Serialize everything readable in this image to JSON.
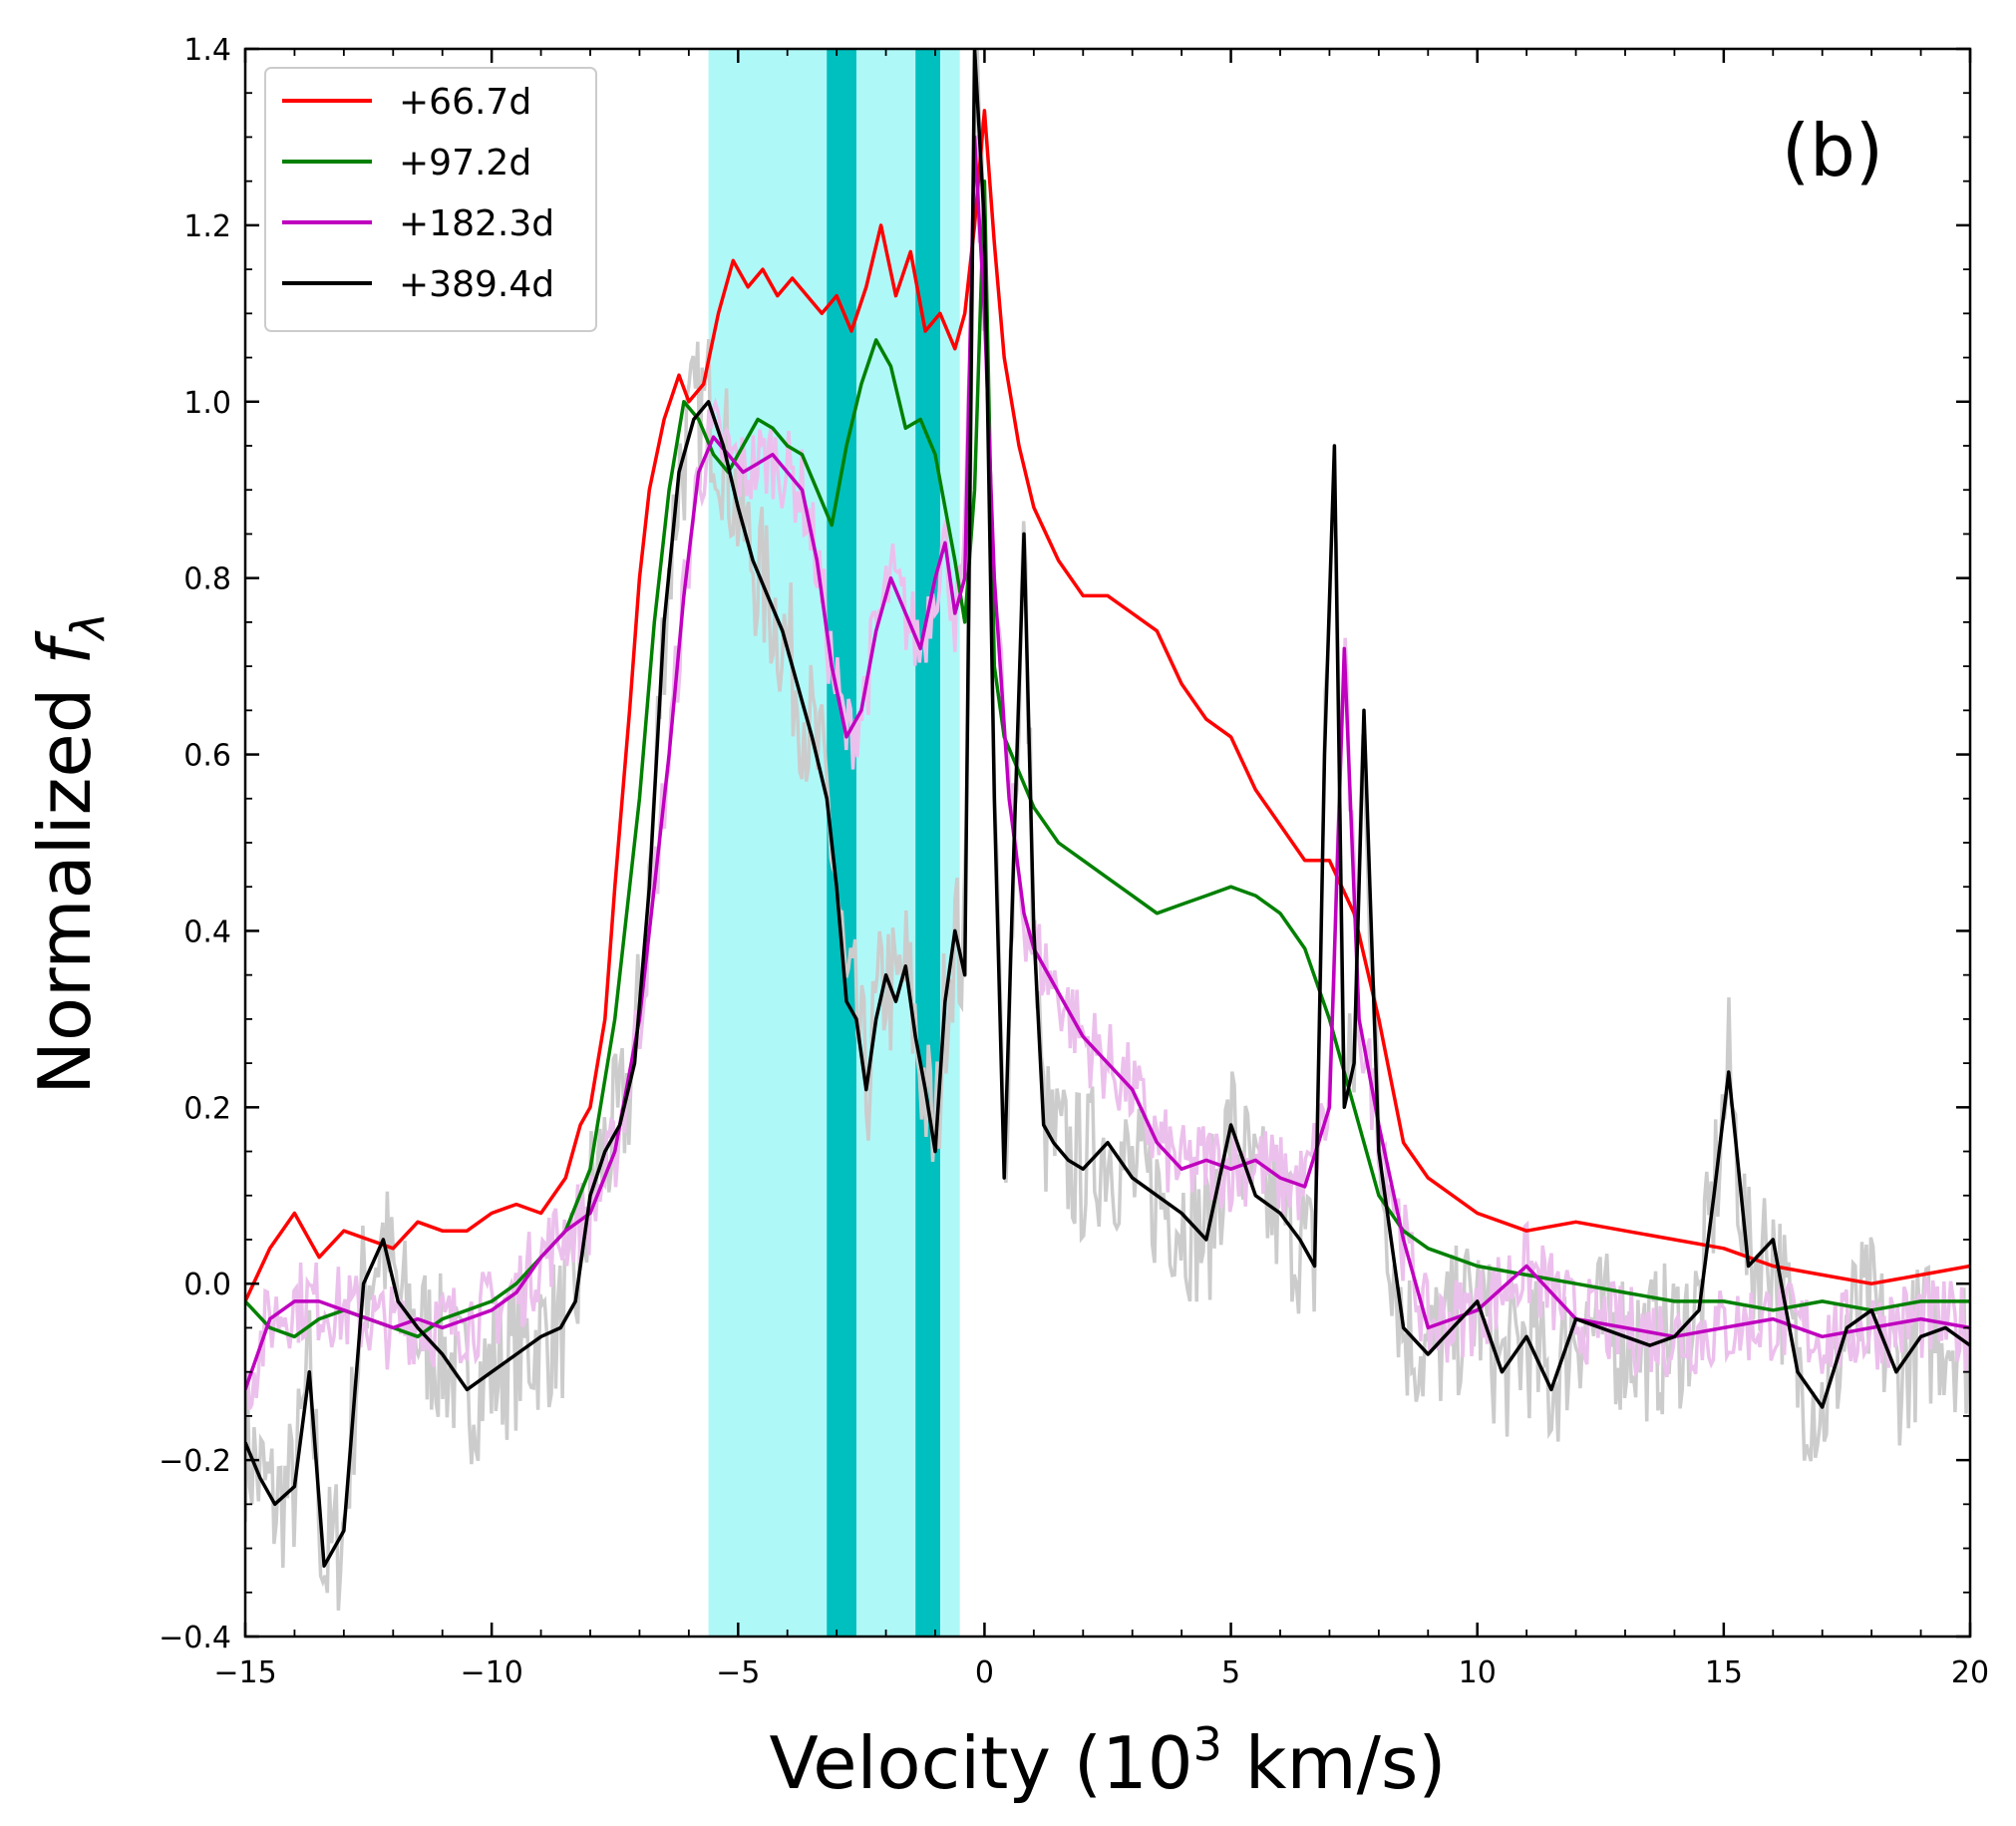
{
  "chart_data": {
    "type": "line",
    "panel_label": "(b)",
    "xlabel": {
      "prefix": "Velocity (10",
      "sup": "3",
      "suffix": " km/s)"
    },
    "ylabel": {
      "prefix": "Normalized ",
      "italic": "f",
      "sub": "λ"
    },
    "xlim": [
      -15,
      20
    ],
    "ylim": [
      -0.4,
      1.4
    ],
    "xticks": [
      -15,
      -10,
      -5,
      0,
      5,
      10,
      15,
      20
    ],
    "xtick_labels": [
      "−15",
      "−10",
      "−5",
      "0",
      "5",
      "10",
      "15",
      "20"
    ],
    "yticks": [
      -0.4,
      -0.2,
      0.0,
      0.2,
      0.4,
      0.6,
      0.8,
      1.0,
      1.2,
      1.4
    ],
    "ytick_labels": [
      "−0.4",
      "−0.2",
      "0.0",
      "0.2",
      "0.4",
      "0.6",
      "0.8",
      "1.0",
      "1.2",
      "1.4"
    ],
    "legend_position": "top-left",
    "shaded_regions": [
      {
        "x0": -5.6,
        "x1": -0.5,
        "color": "#aff8f8",
        "name": "light-band"
      },
      {
        "x0": -3.2,
        "x1": -2.6,
        "color": "#00bfbf",
        "name": "dark-band-1"
      },
      {
        "x0": -1.4,
        "x1": -0.9,
        "color": "#00bfbf",
        "name": "dark-band-2"
      }
    ],
    "series": [
      {
        "name": "+66.7d",
        "color": "#ff0000",
        "x": [
          -15,
          -14.5,
          -14,
          -13.5,
          -13,
          -12.5,
          -12,
          -11.5,
          -11,
          -10.5,
          -10,
          -9.5,
          -9,
          -8.5,
          -8.2,
          -8,
          -7.7,
          -7.5,
          -7.2,
          -7,
          -6.8,
          -6.5,
          -6.2,
          -6,
          -5.7,
          -5.4,
          -5.1,
          -4.8,
          -4.5,
          -4.2,
          -3.9,
          -3.6,
          -3.3,
          -3,
          -2.7,
          -2.4,
          -2.1,
          -1.8,
          -1.5,
          -1.2,
          -0.9,
          -0.6,
          -0.4,
          -0.2,
          0,
          0.2,
          0.4,
          0.7,
          1,
          1.5,
          2,
          2.5,
          3,
          3.5,
          4,
          4.5,
          5,
          5.5,
          6,
          6.5,
          7,
          7.5,
          8,
          8.5,
          9,
          10,
          11,
          12,
          13,
          14,
          15,
          16,
          17,
          18,
          19,
          20
        ],
        "y": [
          -0.02,
          0.04,
          0.08,
          0.03,
          0.06,
          0.05,
          0.04,
          0.07,
          0.06,
          0.06,
          0.08,
          0.09,
          0.08,
          0.12,
          0.18,
          0.2,
          0.3,
          0.45,
          0.65,
          0.8,
          0.9,
          0.98,
          1.03,
          1.0,
          1.02,
          1.1,
          1.16,
          1.13,
          1.15,
          1.12,
          1.14,
          1.12,
          1.1,
          1.12,
          1.08,
          1.13,
          1.2,
          1.12,
          1.17,
          1.08,
          1.1,
          1.06,
          1.1,
          1.2,
          1.33,
          1.18,
          1.05,
          0.95,
          0.88,
          0.82,
          0.78,
          0.78,
          0.76,
          0.74,
          0.68,
          0.64,
          0.62,
          0.56,
          0.52,
          0.48,
          0.48,
          0.42,
          0.3,
          0.16,
          0.12,
          0.08,
          0.06,
          0.07,
          0.06,
          0.05,
          0.04,
          0.02,
          0.01,
          0.0,
          0.01,
          0.02
        ]
      },
      {
        "name": "+97.2d",
        "color": "#008000",
        "x": [
          -15,
          -14.5,
          -14,
          -13.5,
          -13,
          -12.5,
          -12,
          -11.5,
          -11,
          -10.5,
          -10,
          -9.5,
          -9,
          -8.5,
          -8,
          -7.5,
          -7,
          -6.7,
          -6.4,
          -6.1,
          -5.8,
          -5.5,
          -5.2,
          -4.9,
          -4.6,
          -4.3,
          -4,
          -3.7,
          -3.4,
          -3.1,
          -2.8,
          -2.5,
          -2.2,
          -1.9,
          -1.6,
          -1.3,
          -1,
          -0.8,
          -0.6,
          -0.4,
          -0.2,
          0,
          0.2,
          0.4,
          0.7,
          1,
          1.5,
          2,
          2.5,
          3,
          3.5,
          4,
          4.5,
          5,
          5.5,
          6,
          6.5,
          7,
          7.5,
          8,
          8.5,
          9,
          10,
          11,
          12,
          13,
          14,
          15,
          16,
          17,
          18,
          19,
          20
        ],
        "y": [
          -0.02,
          -0.05,
          -0.06,
          -0.04,
          -0.03,
          -0.04,
          -0.05,
          -0.06,
          -0.04,
          -0.03,
          -0.02,
          0.0,
          0.03,
          0.06,
          0.13,
          0.3,
          0.55,
          0.75,
          0.9,
          1.0,
          0.98,
          0.94,
          0.92,
          0.95,
          0.98,
          0.97,
          0.95,
          0.94,
          0.9,
          0.86,
          0.95,
          1.02,
          1.07,
          1.04,
          0.97,
          0.98,
          0.94,
          0.88,
          0.82,
          0.75,
          0.9,
          1.25,
          0.7,
          0.62,
          0.58,
          0.54,
          0.5,
          0.48,
          0.46,
          0.44,
          0.42,
          0.43,
          0.44,
          0.45,
          0.44,
          0.42,
          0.38,
          0.3,
          0.2,
          0.1,
          0.06,
          0.04,
          0.02,
          0.01,
          0.0,
          -0.01,
          -0.02,
          -0.02,
          -0.03,
          -0.02,
          -0.03,
          -0.02,
          -0.02
        ]
      },
      {
        "name": "+182.3d",
        "color": "#bf00bf",
        "x": [
          -15,
          -14.5,
          -14,
          -13.5,
          -13,
          -12.5,
          -12,
          -11.5,
          -11,
          -10.5,
          -10,
          -9.5,
          -9,
          -8.5,
          -8,
          -7.5,
          -7,
          -6.7,
          -6.4,
          -6.1,
          -5.8,
          -5.5,
          -5.2,
          -4.9,
          -4.6,
          -4.3,
          -4,
          -3.7,
          -3.4,
          -3.1,
          -2.8,
          -2.5,
          -2.2,
          -1.9,
          -1.6,
          -1.3,
          -1.0,
          -0.8,
          -0.6,
          -0.4,
          -0.2,
          0,
          0.2,
          0.5,
          0.8,
          1.0,
          1.5,
          2,
          2.5,
          3,
          3.5,
          4,
          4.5,
          5,
          5.5,
          6,
          6.5,
          7,
          7.3,
          7.6,
          8,
          8.5,
          9,
          10,
          11,
          12,
          13,
          14,
          15,
          16,
          17,
          18,
          19,
          20
        ],
        "y": [
          -0.12,
          -0.04,
          -0.02,
          -0.02,
          -0.03,
          -0.04,
          -0.05,
          -0.04,
          -0.05,
          -0.04,
          -0.03,
          -0.01,
          0.03,
          0.06,
          0.08,
          0.15,
          0.3,
          0.45,
          0.6,
          0.78,
          0.92,
          0.96,
          0.94,
          0.92,
          0.93,
          0.94,
          0.92,
          0.9,
          0.82,
          0.7,
          0.62,
          0.65,
          0.74,
          0.8,
          0.76,
          0.72,
          0.8,
          0.84,
          0.76,
          0.8,
          1.3,
          1.1,
          0.8,
          0.55,
          0.42,
          0.38,
          0.33,
          0.28,
          0.25,
          0.22,
          0.16,
          0.13,
          0.14,
          0.13,
          0.14,
          0.12,
          0.11,
          0.2,
          0.72,
          0.3,
          0.18,
          0.05,
          -0.05,
          -0.03,
          0.02,
          -0.04,
          -0.05,
          -0.06,
          -0.05,
          -0.04,
          -0.06,
          -0.05,
          -0.04,
          -0.05
        ]
      },
      {
        "name": "+389.4d",
        "color": "#000000",
        "x": [
          -15,
          -14.7,
          -14.4,
          -14,
          -13.7,
          -13.4,
          -13,
          -12.6,
          -12.2,
          -11.9,
          -11.5,
          -11,
          -10.5,
          -10,
          -9.5,
          -9,
          -8.6,
          -8.3,
          -8,
          -7.7,
          -7.4,
          -7.1,
          -6.8,
          -6.5,
          -6.2,
          -5.9,
          -5.6,
          -5.3,
          -5.0,
          -4.7,
          -4.4,
          -4.1,
          -3.8,
          -3.5,
          -3.2,
          -3.0,
          -2.8,
          -2.6,
          -2.4,
          -2.2,
          -2.0,
          -1.8,
          -1.6,
          -1.4,
          -1.2,
          -1.0,
          -0.8,
          -0.6,
          -0.4,
          -0.2,
          0,
          0.2,
          0.4,
          0.6,
          0.8,
          1.0,
          1.2,
          1.4,
          1.7,
          2,
          2.5,
          3,
          3.5,
          4,
          4.5,
          5,
          5.5,
          6,
          6.4,
          6.7,
          6.9,
          7.1,
          7.3,
          7.5,
          7.7,
          8,
          8.5,
          9,
          9.5,
          10,
          10.5,
          11,
          11.5,
          12,
          12.5,
          13,
          13.5,
          14,
          14.5,
          14.8,
          15.1,
          15.5,
          16,
          16.5,
          17,
          17.5,
          18,
          18.5,
          19,
          19.5,
          20
        ],
        "y": [
          -0.18,
          -0.22,
          -0.25,
          -0.23,
          -0.1,
          -0.32,
          -0.28,
          0.0,
          0.05,
          -0.02,
          -0.05,
          -0.08,
          -0.12,
          -0.1,
          -0.08,
          -0.06,
          -0.05,
          -0.02,
          0.1,
          0.15,
          0.18,
          0.25,
          0.45,
          0.75,
          0.92,
          0.98,
          1.0,
          0.95,
          0.88,
          0.82,
          0.78,
          0.74,
          0.68,
          0.62,
          0.55,
          0.45,
          0.32,
          0.3,
          0.22,
          0.3,
          0.35,
          0.32,
          0.36,
          0.28,
          0.22,
          0.15,
          0.32,
          0.4,
          0.35,
          1.4,
          1.2,
          0.55,
          0.12,
          0.5,
          0.85,
          0.4,
          0.18,
          0.16,
          0.14,
          0.13,
          0.16,
          0.12,
          0.1,
          0.08,
          0.05,
          0.18,
          0.1,
          0.08,
          0.05,
          0.02,
          0.6,
          0.95,
          0.2,
          0.25,
          0.65,
          0.15,
          -0.05,
          -0.08,
          -0.05,
          -0.02,
          -0.1,
          -0.06,
          -0.12,
          -0.04,
          -0.05,
          -0.06,
          -0.07,
          -0.06,
          -0.03,
          0.1,
          0.24,
          0.02,
          0.05,
          -0.1,
          -0.14,
          -0.05,
          -0.03,
          -0.1,
          -0.06,
          -0.05,
          -0.07
        ]
      }
    ]
  }
}
